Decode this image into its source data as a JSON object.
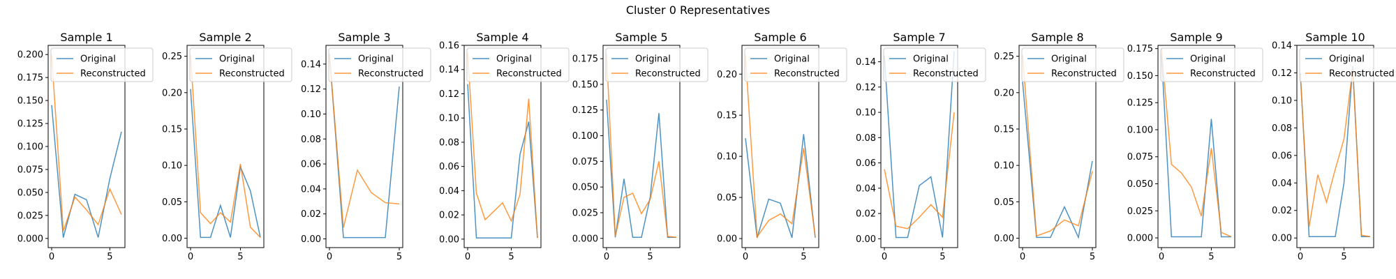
{
  "figure": {
    "title": "Cluster 0 Representatives"
  },
  "colors": {
    "original": "#1f77b4",
    "reconstructed": "#ff7f0e"
  },
  "legend": {
    "original": "Original",
    "reconstructed": "Reconstructed",
    "placement": "upper-left"
  },
  "chart_data": [
    {
      "type": "line",
      "title": "Sample 1",
      "xlim": [
        -0.3,
        6.3
      ],
      "ylim": [
        -0.01,
        0.21
      ],
      "xticks": [
        0,
        5
      ],
      "xtick_labels": [
        "0",
        "5"
      ],
      "yticks": [
        0,
        0.025,
        0.05,
        0.075,
        0.1,
        0.125,
        0.15,
        0.175,
        0.2
      ],
      "ytick_labels": [
        "0.000",
        "0.025",
        "0.050",
        "0.075",
        "0.100",
        "0.125",
        "0.150",
        "0.175",
        "0.200"
      ],
      "series": [
        {
          "name": "Original",
          "x": [
            0,
            1,
            2,
            3,
            4,
            5,
            6
          ],
          "values": [
            0.145,
            0.001,
            0.048,
            0.042,
            0.001,
            0.065,
            0.116
          ]
        },
        {
          "name": "Reconstructed",
          "x": [
            0,
            1,
            2,
            3,
            4,
            5,
            6
          ],
          "values": [
            0.2,
            0.008,
            0.045,
            0.031,
            0.015,
            0.054,
            0.026
          ]
        }
      ]
    },
    {
      "type": "line",
      "title": "Sample 2",
      "xlim": [
        -0.35,
        7.35
      ],
      "ylim": [
        -0.013,
        0.265
      ],
      "xticks": [
        0,
        5
      ],
      "xtick_labels": [
        "0",
        "5"
      ],
      "yticks": [
        0,
        0.05,
        0.1,
        0.15,
        0.2,
        0.25
      ],
      "ytick_labels": [
        "0.00",
        "0.05",
        "0.10",
        "0.15",
        "0.20",
        "0.25"
      ],
      "series": [
        {
          "name": "Original",
          "x": [
            0,
            1,
            2,
            3,
            4,
            5,
            6,
            7
          ],
          "values": [
            0.205,
            0.001,
            0.001,
            0.045,
            0.001,
            0.098,
            0.065,
            0.001
          ]
        },
        {
          "name": "Reconstructed",
          "x": [
            0,
            1,
            2,
            3,
            4,
            5,
            6,
            7
          ],
          "values": [
            0.252,
            0.035,
            0.02,
            0.035,
            0.022,
            0.102,
            0.015,
            0.001
          ]
        }
      ]
    },
    {
      "type": "line",
      "title": "Sample 3",
      "xlim": [
        -0.25,
        5.25
      ],
      "ylim": [
        -0.007,
        0.155
      ],
      "xticks": [
        0,
        5
      ],
      "xtick_labels": [
        "0",
        "5"
      ],
      "yticks": [
        0,
        0.02,
        0.04,
        0.06,
        0.08,
        0.1,
        0.12,
        0.14
      ],
      "ytick_labels": [
        "0.00",
        "0.02",
        "0.04",
        "0.06",
        "0.08",
        "0.10",
        "0.12",
        "0.14"
      ],
      "series": [
        {
          "name": "Original",
          "x": [
            0,
            1,
            2,
            3,
            4,
            5
          ],
          "values": [
            0.148,
            0.001,
            0.001,
            0.001,
            0.001,
            0.122
          ]
        },
        {
          "name": "Reconstructed",
          "x": [
            0,
            1,
            2,
            3,
            4,
            5
          ],
          "values": [
            0.147,
            0.009,
            0.055,
            0.037,
            0.029,
            0.028
          ]
        }
      ]
    },
    {
      "type": "line",
      "title": "Sample 4",
      "xlim": [
        -0.4,
        8.4
      ],
      "ylim": [
        -0.007,
        0.16
      ],
      "xticks": [
        0,
        5
      ],
      "xtick_labels": [
        "0",
        "5"
      ],
      "yticks": [
        0,
        0.02,
        0.04,
        0.06,
        0.08,
        0.1,
        0.12,
        0.14,
        0.16
      ],
      "ytick_labels": [
        "0.00",
        "0.02",
        "0.04",
        "0.06",
        "0.08",
        "0.10",
        "0.12",
        "0.14",
        "0.16"
      ],
      "series": [
        {
          "name": "Original",
          "x": [
            0,
            1,
            2,
            3,
            4,
            5,
            6,
            7,
            8
          ],
          "values": [
            0.128,
            0.001,
            0.001,
            0.001,
            0.001,
            0.001,
            0.07,
            0.097,
            0.001
          ]
        },
        {
          "name": "Reconstructed",
          "x": [
            0,
            1,
            2,
            3,
            4,
            5,
            6,
            7,
            8
          ],
          "values": [
            0.154,
            0.038,
            0.016,
            0.023,
            0.03,
            0.015,
            0.037,
            0.116,
            0.001
          ]
        }
      ]
    },
    {
      "type": "line",
      "title": "Sample 5",
      "xlim": [
        -0.4,
        8.4
      ],
      "ylim": [
        -0.009,
        0.188
      ],
      "xticks": [
        0,
        5
      ],
      "xtick_labels": [
        "0",
        "5"
      ],
      "yticks": [
        0,
        0.025,
        0.05,
        0.075,
        0.1,
        0.125,
        0.15,
        0.175
      ],
      "ytick_labels": [
        "0.000",
        "0.025",
        "0.050",
        "0.075",
        "0.100",
        "0.125",
        "0.150",
        "0.175"
      ],
      "series": [
        {
          "name": "Original",
          "x": [
            0,
            1,
            2,
            3,
            4,
            5,
            6,
            7,
            8
          ],
          "values": [
            0.135,
            0.001,
            0.058,
            0.001,
            0.001,
            0.04,
            0.122,
            0.001,
            0.001
          ]
        },
        {
          "name": "Reconstructed",
          "x": [
            0,
            1,
            2,
            3,
            4,
            5,
            6,
            7,
            8
          ],
          "values": [
            0.18,
            0.002,
            0.04,
            0.044,
            0.024,
            0.038,
            0.075,
            0.002,
            0.001
          ]
        }
      ]
    },
    {
      "type": "line",
      "title": "Sample 6",
      "xlim": [
        -0.3,
        6.3
      ],
      "ylim": [
        -0.011,
        0.235
      ],
      "xticks": [
        0,
        5
      ],
      "xtick_labels": [
        "0",
        "5"
      ],
      "yticks": [
        0,
        0.05,
        0.1,
        0.15,
        0.2
      ],
      "ytick_labels": [
        "0.00",
        "0.05",
        "0.10",
        "0.15",
        "0.20"
      ],
      "series": [
        {
          "name": "Original",
          "x": [
            0,
            1,
            2,
            3,
            4,
            5,
            6
          ],
          "values": [
            0.122,
            0.001,
            0.048,
            0.043,
            0.001,
            0.127,
            0.001
          ]
        },
        {
          "name": "Reconstructed",
          "x": [
            0,
            1,
            2,
            3,
            4,
            5,
            6
          ],
          "values": [
            0.223,
            0.002,
            0.022,
            0.03,
            0.018,
            0.11,
            0.002
          ]
        }
      ]
    },
    {
      "type": "line",
      "title": "Sample 7",
      "xlim": [
        -0.3,
        6.3
      ],
      "ylim": [
        -0.007,
        0.153
      ],
      "xticks": [
        0,
        5
      ],
      "xtick_labels": [
        "0",
        "5"
      ],
      "yticks": [
        0,
        0.02,
        0.04,
        0.06,
        0.08,
        0.1,
        0.12,
        0.14
      ],
      "ytick_labels": [
        "0.00",
        "0.02",
        "0.04",
        "0.06",
        "0.08",
        "0.10",
        "0.12",
        "0.14"
      ],
      "series": [
        {
          "name": "Original",
          "x": [
            0,
            1,
            2,
            3,
            4,
            5,
            6
          ],
          "values": [
            0.145,
            0.001,
            0.001,
            0.042,
            0.049,
            0.001,
            0.148
          ]
        },
        {
          "name": "Reconstructed",
          "x": [
            0,
            1,
            2,
            3,
            4,
            5,
            6
          ],
          "values": [
            0.055,
            0.01,
            0.008,
            0.017,
            0.027,
            0.017,
            0.1
          ]
        }
      ]
    },
    {
      "type": "line",
      "title": "Sample 8",
      "xlim": [
        -0.25,
        5.25
      ],
      "ylim": [
        -0.013,
        0.265
      ],
      "xticks": [
        0,
        5
      ],
      "xtick_labels": [
        "0",
        "5"
      ],
      "yticks": [
        0,
        0.05,
        0.1,
        0.15,
        0.2,
        0.25
      ],
      "ytick_labels": [
        "0.00",
        "0.05",
        "0.10",
        "0.15",
        "0.20",
        "0.25"
      ],
      "series": [
        {
          "name": "Original",
          "x": [
            0,
            1,
            2,
            3,
            4,
            5
          ],
          "values": [
            0.215,
            0.001,
            0.001,
            0.043,
            0.001,
            0.106
          ]
        },
        {
          "name": "Reconstructed",
          "x": [
            0,
            1,
            2,
            3,
            4,
            5
          ],
          "values": [
            0.252,
            0.003,
            0.01,
            0.025,
            0.017,
            0.092
          ]
        }
      ]
    },
    {
      "type": "line",
      "title": "Sample 9",
      "xlim": [
        -0.35,
        7.35
      ],
      "ylim": [
        -0.009,
        0.178
      ],
      "xticks": [
        0,
        5
      ],
      "xtick_labels": [
        "0",
        "5"
      ],
      "yticks": [
        0,
        0.025,
        0.05,
        0.075,
        0.1,
        0.125,
        0.15,
        0.175
      ],
      "ytick_labels": [
        "0.000",
        "0.025",
        "0.050",
        "0.075",
        "0.100",
        "0.125",
        "0.150",
        "0.175"
      ],
      "series": [
        {
          "name": "Original",
          "x": [
            0,
            1,
            2,
            3,
            4,
            5,
            6,
            7
          ],
          "values": [
            0.17,
            0.001,
            0.001,
            0.001,
            0.001,
            0.11,
            0.001,
            0.001
          ]
        },
        {
          "name": "Reconstructed",
          "x": [
            0,
            1,
            2,
            3,
            4,
            5,
            6,
            7
          ],
          "values": [
            0.175,
            0.068,
            0.06,
            0.047,
            0.02,
            0.083,
            0.005,
            0.001
          ]
        }
      ]
    },
    {
      "type": "line",
      "title": "Sample 10",
      "xlim": [
        -0.4,
        8.4
      ],
      "ylim": [
        -0.007,
        0.14
      ],
      "xticks": [
        0,
        5
      ],
      "xtick_labels": [
        "0",
        "5"
      ],
      "yticks": [
        0,
        0.02,
        0.04,
        0.06,
        0.08,
        0.1,
        0.12,
        0.14
      ],
      "ytick_labels": [
        "0.00",
        "0.02",
        "0.04",
        "0.06",
        "0.08",
        "0.10",
        "0.12",
        "0.14"
      ],
      "series": [
        {
          "name": "Original",
          "x": [
            0,
            1,
            2,
            3,
            4,
            5,
            6,
            7,
            8
          ],
          "values": [
            0.12,
            0.001,
            0.001,
            0.001,
            0.001,
            0.04,
            0.125,
            0.001,
            0.001
          ]
        },
        {
          "name": "Reconstructed",
          "x": [
            0,
            1,
            2,
            3,
            4,
            5,
            6,
            7,
            8
          ],
          "values": [
            0.118,
            0.008,
            0.046,
            0.026,
            0.05,
            0.072,
            0.123,
            0.002,
            0.001
          ]
        }
      ]
    }
  ]
}
